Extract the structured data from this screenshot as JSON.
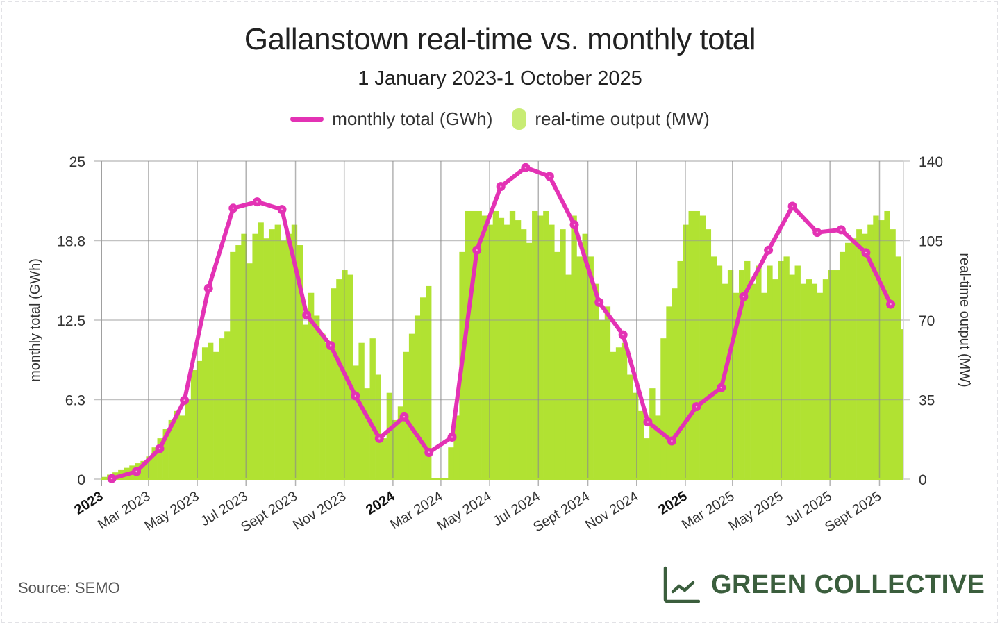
{
  "title": "Gallanstown real-time vs. monthly total",
  "subtitle": "1 January 2023-1 October 2025",
  "legend": {
    "line_label": "monthly total (GWh)",
    "bar_label": "real-time output (MW)"
  },
  "footer": {
    "source": "Source: SEMO",
    "brand": "GREEN COLLECTIVE",
    "brand_icon": "line-chart-icon"
  },
  "colors": {
    "line": "#e332b4",
    "bars": "#b1e232",
    "legend_bars": "#c8ec74",
    "brand": "#3b5e3d",
    "grid": "#bdbdbd"
  },
  "chart_data": {
    "type": "bar+line",
    "title": "Gallanstown real-time vs. monthly total",
    "subtitle": "1 January 2023-1 October 2025",
    "xlabel": "",
    "ylabel_left": "monthly total (GWh)",
    "ylabel_right": "real-time output (MW)",
    "ylim_left": [
      0,
      25
    ],
    "ylim_right": [
      0,
      140
    ],
    "yticks_left": [
      "0",
      "6.3",
      "12.5",
      "18.8",
      "25"
    ],
    "yticks_left_values": [
      0,
      6.25,
      12.5,
      18.75,
      25
    ],
    "yticks_right": [
      "0",
      "35",
      "70",
      "105",
      "140"
    ],
    "yticks_right_values": [
      0,
      35,
      70,
      105,
      140
    ],
    "x_range_days": [
      0,
      1004
    ],
    "xticks": [
      {
        "label": "2023",
        "day": 0,
        "bold": true
      },
      {
        "label": "Mar 2023",
        "day": 59,
        "bold": false
      },
      {
        "label": "May 2023",
        "day": 120,
        "bold": false
      },
      {
        "label": "Jul 2023",
        "day": 181,
        "bold": false
      },
      {
        "label": "Sept 2023",
        "day": 243,
        "bold": false
      },
      {
        "label": "Nov 2023",
        "day": 304,
        "bold": false
      },
      {
        "label": "2024",
        "day": 365,
        "bold": true
      },
      {
        "label": "Mar 2024",
        "day": 425,
        "bold": false
      },
      {
        "label": "May 2024",
        "day": 486,
        "bold": false
      },
      {
        "label": "Jul 2024",
        "day": 547,
        "bold": false
      },
      {
        "label": "Sept 2024",
        "day": 609,
        "bold": false
      },
      {
        "label": "Nov 2024",
        "day": 670,
        "bold": false
      },
      {
        "label": "2025",
        "day": 731,
        "bold": true
      },
      {
        "label": "Mar 2025",
        "day": 790,
        "bold": false
      },
      {
        "label": "May 2025",
        "day": 851,
        "bold": false
      },
      {
        "label": "Jul 2025",
        "day": 912,
        "bold": false
      },
      {
        "label": "Sept 2025",
        "day": 974,
        "bold": false
      }
    ],
    "grid": true,
    "legend_position": "top-center",
    "series": [
      {
        "name": "monthly total (GWh)",
        "type": "line",
        "axis": "left",
        "x_days": [
          13,
          44,
          73,
          104,
          134,
          165,
          195,
          226,
          257,
          287,
          318,
          348,
          379,
          410,
          439,
          470,
          500,
          531,
          561,
          592,
          623,
          653,
          684,
          714,
          745,
          776,
          804,
          835,
          865,
          896,
          926,
          957,
          988
        ],
        "values": [
          0.05,
          0.6,
          2.4,
          6.2,
          15.0,
          21.3,
          21.8,
          21.2,
          12.9,
          10.5,
          6.55,
          3.2,
          4.9,
          2.1,
          3.3,
          18.0,
          23.0,
          24.5,
          23.8,
          20.0,
          13.9,
          11.35,
          4.5,
          3.0,
          5.7,
          7.2,
          14.35,
          18.0,
          21.45,
          19.4,
          19.6,
          17.8,
          13.75
        ]
      },
      {
        "name": "real-time output (MW)",
        "type": "bar",
        "axis": "right",
        "resolution": "weekly",
        "start_day": 0,
        "step_days": 7,
        "values": [
          1,
          2,
          3,
          4,
          5,
          6,
          7,
          8,
          10,
          14,
          18,
          22,
          26,
          30,
          28,
          35,
          48,
          52,
          58,
          60,
          56,
          62,
          65,
          100,
          103,
          108,
          95,
          108,
          113,
          106,
          110,
          112,
          105,
          108,
          112,
          103,
          68,
          82,
          72,
          64,
          60,
          84,
          88,
          92,
          90,
          50,
          60,
          40,
          62,
          46,
          18,
          38,
          26,
          32,
          56,
          64,
          72,
          80,
          85,
          0,
          0,
          0,
          14,
          28,
          100,
          118,
          118,
          118,
          116,
          112,
          118,
          115,
          112,
          118,
          114,
          110,
          104,
          118,
          116,
          118,
          112,
          100,
          110,
          90,
          116,
          98,
          108,
          98,
          86,
          70,
          76,
          56,
          58,
          60,
          46,
          38,
          30,
          18,
          40,
          28,
          62,
          76,
          84,
          96,
          112,
          118,
          118,
          116,
          110,
          98,
          94,
          86,
          92,
          82,
          92,
          96,
          86,
          94,
          82,
          94,
          88,
          96,
          98,
          90,
          94,
          86,
          88,
          86,
          82,
          88,
          92,
          92,
          100,
          104,
          106,
          110,
          108,
          112,
          116,
          114,
          118,
          110,
          98,
          66
        ]
      }
    ]
  }
}
